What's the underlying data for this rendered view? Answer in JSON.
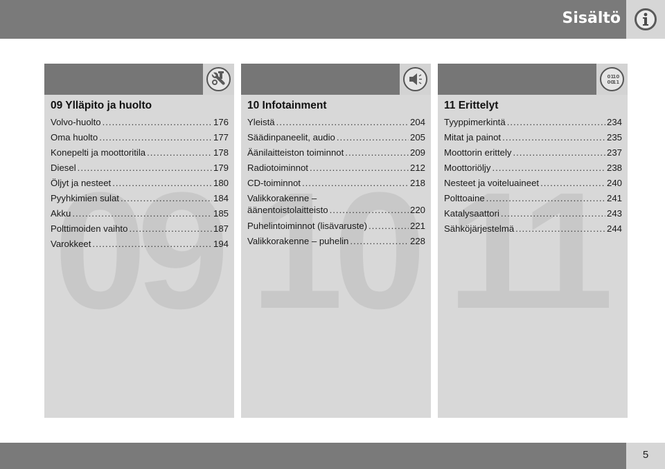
{
  "header": {
    "title": "Sisältö",
    "icon": "info-icon"
  },
  "panels": [
    {
      "number": "09",
      "title": "09 Ylläpito ja huolto",
      "icon": "wrench-icon",
      "items": [
        {
          "label": "Volvo-huolto",
          "page": "176"
        },
        {
          "label": "Oma huolto",
          "page": "177"
        },
        {
          "label": "Konepelti ja moottoritila",
          "page": "178"
        },
        {
          "label": "Diesel",
          "page": "179"
        },
        {
          "label": "Öljyt ja nesteet",
          "page": "180"
        },
        {
          "label": "Pyyhkimien sulat",
          "page": "184"
        },
        {
          "label": "Akku",
          "page": "185"
        },
        {
          "label": "Polttimoiden vaihto",
          "page": "187"
        },
        {
          "label": "Varokkeet",
          "page": "194"
        }
      ]
    },
    {
      "number": "10",
      "title": "10 Infotainment",
      "icon": "speaker-icon",
      "items": [
        {
          "label": "Yleistä",
          "page": "204"
        },
        {
          "label": "Säädinpaneelit, audio",
          "page": "205"
        },
        {
          "label": "Äänilaitteiston toiminnot",
          "page": "209"
        },
        {
          "label": "Radiotoiminnot",
          "page": "212"
        },
        {
          "label": "CD-toiminnot",
          "page": "218"
        },
        {
          "label": "Valikkorakenne –",
          "label2": "äänentoistolaitteisto",
          "page": "220"
        },
        {
          "label": "Puhelintoiminnot (lisävaruste)",
          "page": "221"
        },
        {
          "label": "Valikkorakenne – puhelin",
          "page": "228"
        }
      ]
    },
    {
      "number": "11",
      "title": "11 Erittelyt",
      "icon": "specifications-icon",
      "icon_text": [
        "01",
        "10",
        "00",
        "11"
      ],
      "items": [
        {
          "label": "Tyyppimerkintä",
          "page": "234"
        },
        {
          "label": "Mitat ja painot",
          "page": "235"
        },
        {
          "label": "Moottorin erittely",
          "page": "237"
        },
        {
          "label": "Moottoriöljy",
          "page": "238"
        },
        {
          "label": "Nesteet ja voiteluaineet",
          "page": "240"
        },
        {
          "label": "Polttoaine",
          "page": "241"
        },
        {
          "label": "Katalysaattori",
          "page": "243"
        },
        {
          "label": "Sähköjärjestelmä",
          "page": "244"
        }
      ]
    }
  ],
  "footer": {
    "page_number": "5"
  }
}
